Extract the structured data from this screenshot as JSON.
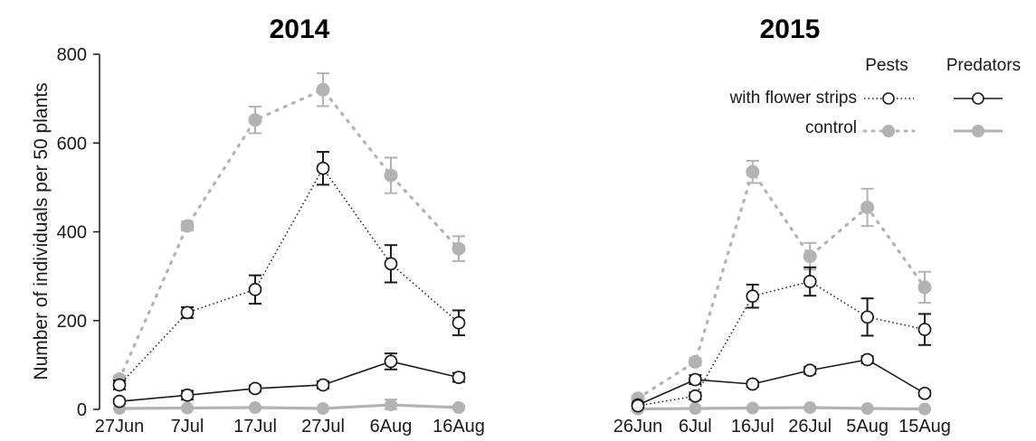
{
  "chart_data": {
    "type": "line",
    "ylabel": "Number of individuals per 50 plants",
    "ylim": [
      0,
      800
    ],
    "yticks": [
      0,
      200,
      400,
      600,
      800
    ],
    "grid": false,
    "legend": {
      "placement": "top-right",
      "column_headers": [
        "Pests",
        "Predators"
      ],
      "rows": [
        "with flower strips",
        "control"
      ]
    },
    "colors": {
      "flower_strips": "#1a1a1a",
      "control": "#b3b3b3"
    },
    "panels": [
      {
        "title": "2014",
        "categories": [
          "27Jun",
          "7Jul",
          "17Jul",
          "27Jul",
          "6Aug",
          "16Aug"
        ],
        "series": [
          {
            "group": "Pests",
            "treatment": "with flower strips",
            "style": "dotted-open",
            "values": [
              55,
              218,
              270,
              543,
              328,
              195
            ],
            "errors": [
              10,
              12,
              32,
              37,
              42,
              28
            ]
          },
          {
            "group": "Pests",
            "treatment": "control",
            "style": "dotted-filled",
            "values": [
              68,
              413,
              652,
              720,
              527,
              362
            ],
            "errors": [
              8,
              10,
              30,
              37,
              40,
              28
            ]
          },
          {
            "group": "Predators",
            "treatment": "with flower strips",
            "style": "solid-open",
            "values": [
              18,
              32,
              47,
              55,
              108,
              72
            ],
            "errors": [
              5,
              10,
              7,
              8,
              18,
              10
            ]
          },
          {
            "group": "Predators",
            "treatment": "control",
            "style": "solid-filled",
            "values": [
              2,
              3,
              4,
              2,
              10,
              4
            ],
            "errors": [
              2,
              2,
              3,
              2,
              12,
              4
            ]
          }
        ]
      },
      {
        "title": "2015",
        "categories": [
          "26Jun",
          "6Jul",
          "16Jul",
          "26Jul",
          "5Aug",
          "15Aug"
        ],
        "series": [
          {
            "group": "Pests",
            "treatment": "with flower strips",
            "style": "dotted-open",
            "values": [
              8,
              30,
              255,
              288,
              208,
              180
            ],
            "errors": [
              4,
              8,
              26,
              32,
              42,
              35
            ]
          },
          {
            "group": "Pests",
            "treatment": "control",
            "style": "dotted-filled",
            "values": [
              25,
              107,
              535,
              345,
              455,
              275
            ],
            "errors": [
              5,
              8,
              25,
              30,
              42,
              35
            ]
          },
          {
            "group": "Predators",
            "treatment": "with flower strips",
            "style": "solid-open",
            "values": [
              10,
              67,
              57,
              88,
              112,
              36
            ],
            "errors": [
              4,
              10,
              6,
              8,
              8,
              6
            ]
          },
          {
            "group": "Predators",
            "treatment": "control",
            "style": "solid-filled",
            "values": [
              1,
              2,
              3,
              4,
              2,
              1
            ],
            "errors": [
              1,
              1,
              2,
              2,
              1,
              1
            ]
          }
        ]
      }
    ]
  }
}
